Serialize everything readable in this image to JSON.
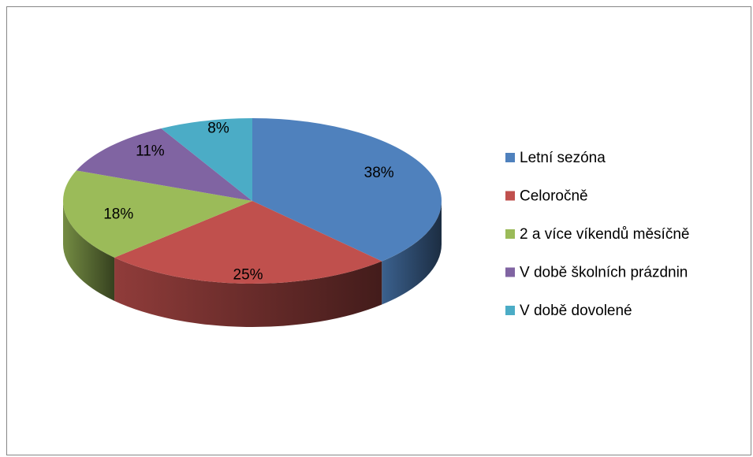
{
  "chart_data": {
    "type": "pie3d",
    "categories": [
      "Letní sezóna",
      "Celoročně",
      "2 a více víkendů měsíčně",
      "V době školních prázdnin",
      "V době dovolené"
    ],
    "values": [
      38,
      25,
      18,
      11,
      8
    ],
    "value_labels": [
      "38%",
      "25%",
      "18%",
      "11%",
      "8%"
    ],
    "colors": [
      "#4f81bd",
      "#c0504d",
      "#9bbb59",
      "#8064a2",
      "#4bacc6"
    ],
    "legend": "right"
  }
}
